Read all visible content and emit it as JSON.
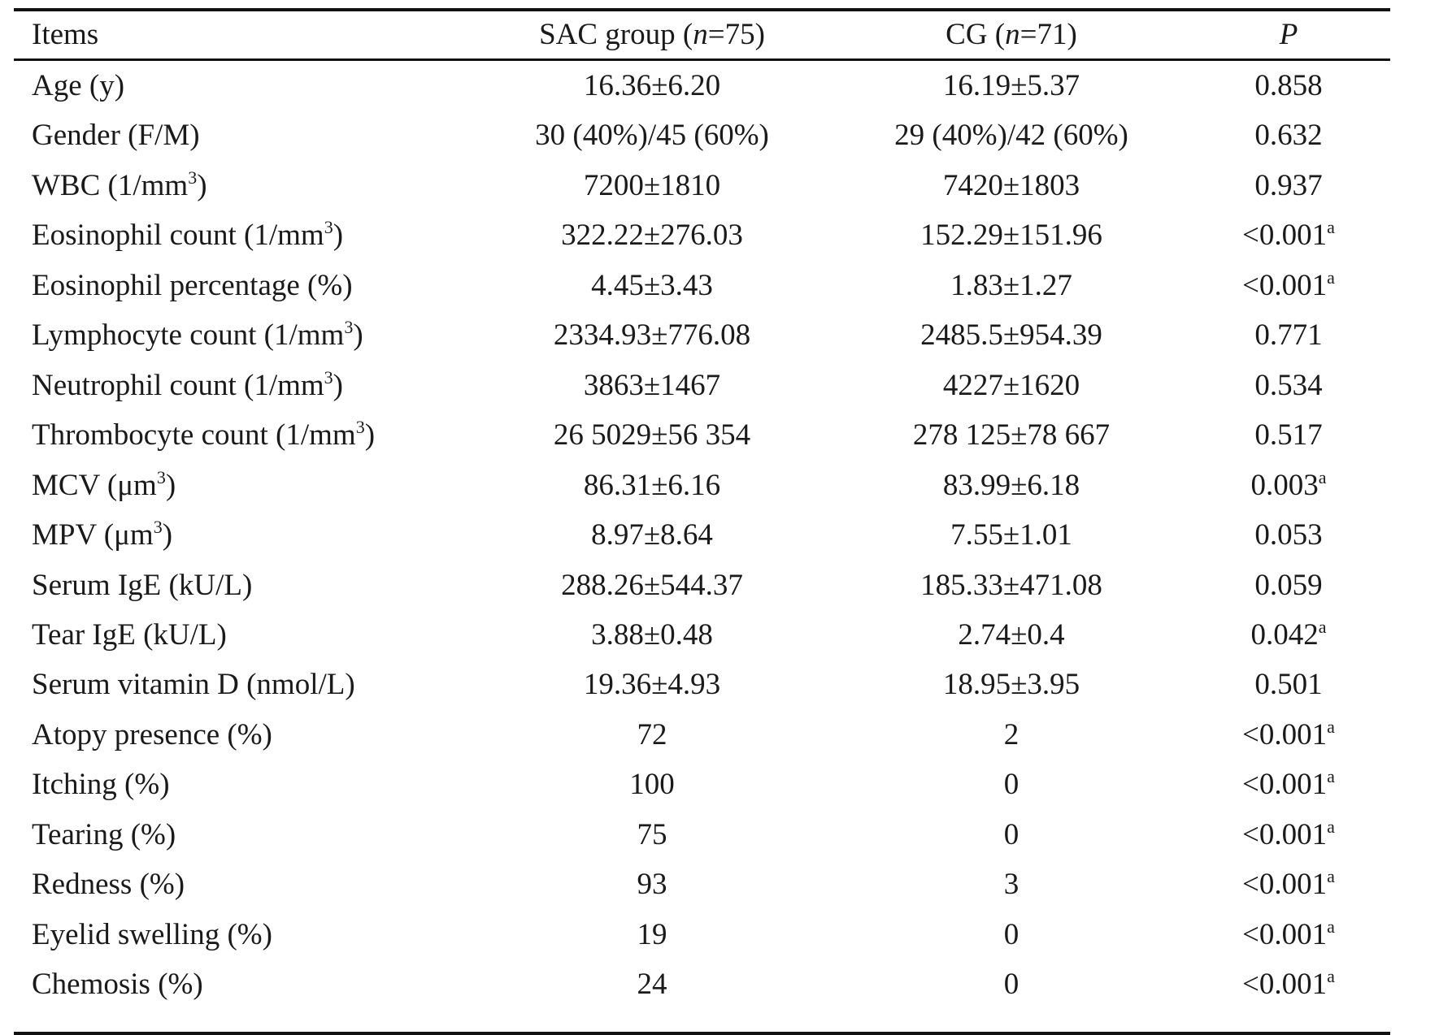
{
  "header": {
    "items": "Items",
    "sac_prefix": "SAC group (",
    "sac_n": "n",
    "sac_suffix": "=75)",
    "cg_prefix": "CG (",
    "cg_n": "n",
    "cg_suffix": "=71)",
    "p": "P"
  },
  "rows": [
    {
      "label": "Age (y)",
      "sup": "",
      "label_end": "",
      "sac": "16.36±6.20",
      "cg": "16.19±5.37",
      "p": "0.858",
      "p_mark": ""
    },
    {
      "label": "Gender (F/M)",
      "sup": "",
      "label_end": "",
      "sac": "30 (40%)/45 (60%)",
      "cg": "29 (40%)/42 (60%)",
      "p": "0.632",
      "p_mark": ""
    },
    {
      "label": "WBC (1/mm",
      "sup": "3",
      "label_end": ")",
      "sac": "7200±1810",
      "cg": "7420±1803",
      "p": "0.937",
      "p_mark": ""
    },
    {
      "label": "Eosinophil count (1/mm",
      "sup": "3",
      "label_end": ")",
      "sac": "322.22±276.03",
      "cg": "152.29±151.96",
      "p": "<0.001",
      "p_mark": "a"
    },
    {
      "label": "Eosinophil percentage (%)",
      "sup": "",
      "label_end": "",
      "sac": "4.45±3.43",
      "cg": "1.83±1.27",
      "p": "<0.001",
      "p_mark": "a"
    },
    {
      "label": "Lymphocyte count (1/mm",
      "sup": "3",
      "label_end": ")",
      "sac": "2334.93±776.08",
      "cg": "2485.5±954.39",
      "p": "0.771",
      "p_mark": ""
    },
    {
      "label": "Neutrophil count (1/mm",
      "sup": "3",
      "label_end": ")",
      "sac": "3863±1467",
      "cg": "4227±1620",
      "p": "0.534",
      "p_mark": ""
    },
    {
      "label": "Thrombocyte count (1/mm",
      "sup": "3",
      "label_end": ")",
      "sac": "26 5029±56 354",
      "cg": "278 125±78 667",
      "p": "0.517",
      "p_mark": ""
    },
    {
      "label": "MCV (μm",
      "sup": "3",
      "label_end": ")",
      "sac": "86.31±6.16",
      "cg": "83.99±6.18",
      "p": "0.003",
      "p_mark": "a"
    },
    {
      "label": "MPV (μm",
      "sup": "3",
      "label_end": ")",
      "sac": "8.97±8.64",
      "cg": "7.55±1.01",
      "p": "0.053",
      "p_mark": ""
    },
    {
      "label": "Serum IgE (kU/L)",
      "sup": "",
      "label_end": "",
      "sac": "288.26±544.37",
      "cg": "185.33±471.08",
      "p": "0.059",
      "p_mark": ""
    },
    {
      "label": "Tear IgE (kU/L)",
      "sup": "",
      "label_end": "",
      "sac": "3.88±0.48",
      "cg": "2.74±0.4",
      "p": "0.042",
      "p_mark": "a"
    },
    {
      "label": "Serum vitamin D (nmol/L)",
      "sup": "",
      "label_end": "",
      "sac": "19.36±4.93",
      "cg": "18.95±3.95",
      "p": "0.501",
      "p_mark": ""
    },
    {
      "label": "Atopy presence (%)",
      "sup": "",
      "label_end": "",
      "sac": "72",
      "cg": "2",
      "p": "<0.001",
      "p_mark": "a"
    },
    {
      "label": "Itching (%)",
      "sup": "",
      "label_end": "",
      "sac": "100",
      "cg": "0",
      "p": "<0.001",
      "p_mark": "a"
    },
    {
      "label": "Tearing (%)",
      "sup": "",
      "label_end": "",
      "sac": "75",
      "cg": "0",
      "p": "<0.001",
      "p_mark": "a"
    },
    {
      "label": "Redness (%)",
      "sup": "",
      "label_end": "",
      "sac": "93",
      "cg": "3",
      "p": "<0.001",
      "p_mark": "a"
    },
    {
      "label": "Eyelid swelling (%)",
      "sup": "",
      "label_end": "",
      "sac": "19",
      "cg": "0",
      "p": "<0.001",
      "p_mark": "a"
    },
    {
      "label": "Chemosis (%)",
      "sup": "",
      "label_end": "",
      "sac": "24",
      "cg": "0",
      "p": "<0.001",
      "p_mark": "a"
    }
  ]
}
